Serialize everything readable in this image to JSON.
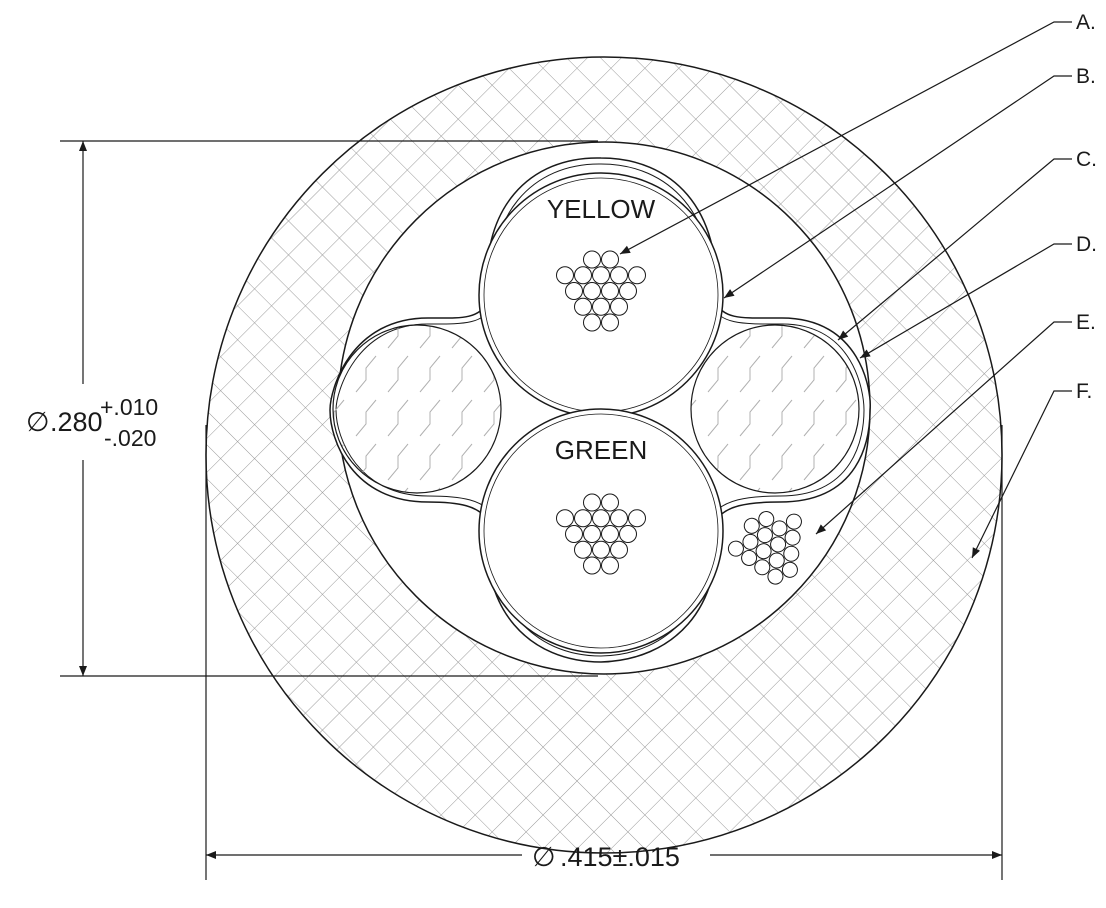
{
  "callouts": [
    "A.",
    "B.",
    "C.",
    "D.",
    "E.",
    "F."
  ],
  "conductors": {
    "top": "YELLOW",
    "bottom": "GREEN"
  },
  "dimensions": {
    "inner": {
      "symbol": "∅",
      "value": ".280",
      "tol_plus": "+.010",
      "tol_minus": "-.020"
    },
    "outer": {
      "symbol": "∅",
      "value": ".415±.015"
    }
  },
  "colors": {
    "line": "#1a1a1a",
    "hatch": "#9a9a9a",
    "background": "#ffffff"
  }
}
